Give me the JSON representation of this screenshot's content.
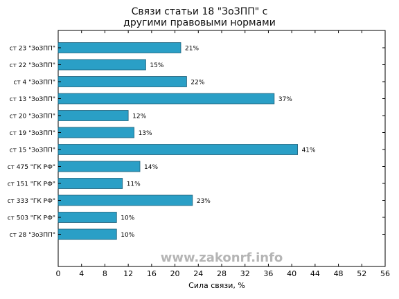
{
  "chart_data": {
    "type": "bar",
    "orientation": "horizontal",
    "title_lines": [
      "Связи статьи 18 \"ЗоЗПП\" с",
      "другими правовыми нормами"
    ],
    "xlabel": "Сила связи, %",
    "ylabel": "",
    "xlim": [
      0,
      56
    ],
    "xticks": [
      0,
      4,
      8,
      12,
      16,
      20,
      24,
      28,
      32,
      36,
      40,
      44,
      48,
      52,
      56
    ],
    "grid": false,
    "bar_color": "#2a9fc6",
    "bar_edge_color": "#1f5f78",
    "categories": [
      "ст 23 \"ЗоЗПП\"",
      "ст 22 \"ЗоЗПП\"",
      "ст 4 \"ЗоЗПП\"",
      "ст 13 \"ЗоЗПП\"",
      "ст 20 \"ЗоЗПП\"",
      "ст 19 \"ЗоЗПП\"",
      "ст 15 \"ЗоЗПП\"",
      "ст 475 \"ГК РФ\"",
      "ст 151 \"ГК РФ\"",
      "ст 333 \"ГК РФ\"",
      "ст 503 \"ГК РФ\"",
      "ст 28 \"ЗоЗПП\""
    ],
    "values": [
      21,
      15,
      22,
      37,
      12,
      13,
      41,
      14,
      11,
      23,
      10,
      10
    ],
    "value_labels": [
      "21%",
      "15%",
      "22%",
      "37%",
      "12%",
      "13%",
      "41%",
      "14%",
      "11%",
      "23%",
      "10%",
      "10%"
    ]
  },
  "watermark": "www.zakonrf.info"
}
